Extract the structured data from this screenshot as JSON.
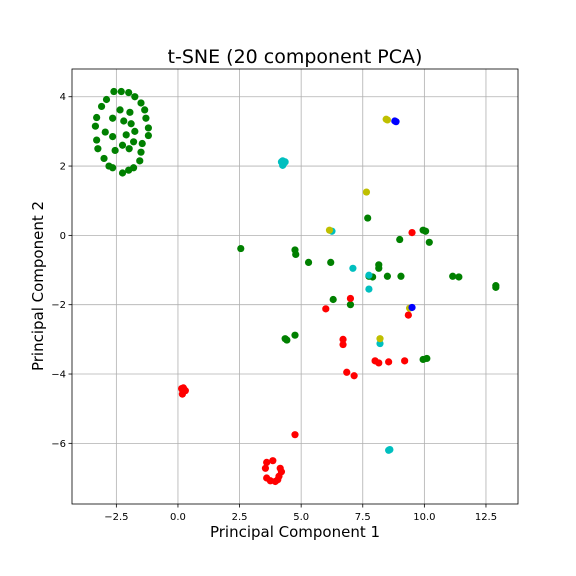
{
  "chart_data": {
    "type": "scatter",
    "title": "t-SNE (20 component PCA)",
    "xlabel": "Principal Component 1",
    "ylabel": "Principal Component 2",
    "xlim": [
      -4.3,
      13.8
    ],
    "ylim": [
      -7.75,
      4.8
    ],
    "xticks": [
      -2.5,
      0.0,
      2.5,
      5.0,
      7.5,
      10.0,
      12.5
    ],
    "xtick_labels": [
      "−2.5",
      "0.0",
      "2.5",
      "5.0",
      "7.5",
      "10.0",
      "12.5"
    ],
    "yticks": [
      -6,
      -4,
      -2,
      0,
      2,
      4
    ],
    "ytick_labels": [
      "−6",
      "−4",
      "−2",
      "0",
      "2",
      "4"
    ],
    "grid": true,
    "series": [
      {
        "color": "#008000",
        "points": [
          [
            -2.6,
            4.15
          ],
          [
            -2.3,
            4.15
          ],
          [
            -2.0,
            4.12
          ],
          [
            -1.75,
            4.0
          ],
          [
            -2.9,
            3.92
          ],
          [
            -1.5,
            3.82
          ],
          [
            -3.1,
            3.72
          ],
          [
            -2.35,
            3.62
          ],
          [
            -1.35,
            3.62
          ],
          [
            -3.3,
            3.4
          ],
          [
            -2.65,
            3.38
          ],
          [
            -1.95,
            3.55
          ],
          [
            -1.3,
            3.38
          ],
          [
            -3.35,
            3.15
          ],
          [
            -2.2,
            3.3
          ],
          [
            -1.9,
            3.22
          ],
          [
            -1.2,
            3.1
          ],
          [
            -2.95,
            2.98
          ],
          [
            -1.75,
            3.0
          ],
          [
            -1.2,
            2.88
          ],
          [
            -3.3,
            2.75
          ],
          [
            -2.65,
            2.85
          ],
          [
            -2.1,
            2.9
          ],
          [
            -1.8,
            2.7
          ],
          [
            -2.25,
            2.6
          ],
          [
            -1.45,
            2.65
          ],
          [
            -3.25,
            2.5
          ],
          [
            -2.55,
            2.45
          ],
          [
            -1.98,
            2.5
          ],
          [
            -1.5,
            2.4
          ],
          [
            -3.0,
            2.22
          ],
          [
            -1.55,
            2.15
          ],
          [
            -2.8,
            2.0
          ],
          [
            -2.65,
            1.95
          ],
          [
            -1.8,
            1.95
          ],
          [
            -2.0,
            1.88
          ],
          [
            -2.25,
            1.8
          ],
          [
            2.55,
            -0.38
          ],
          [
            4.75,
            -0.42
          ],
          [
            4.78,
            -0.55
          ],
          [
            5.3,
            -0.78
          ],
          [
            6.2,
            -0.78
          ],
          [
            7.7,
            0.5
          ],
          [
            8.15,
            -0.85
          ],
          [
            8.15,
            -0.95
          ],
          [
            7.75,
            -1.18
          ],
          [
            7.9,
            -1.2
          ],
          [
            8.5,
            -1.18
          ],
          [
            9.05,
            -1.18
          ],
          [
            9.0,
            -0.12
          ],
          [
            9.95,
            0.15
          ],
          [
            10.05,
            0.12
          ],
          [
            10.2,
            -0.2
          ],
          [
            11.15,
            -1.18
          ],
          [
            11.4,
            -1.2
          ],
          [
            12.9,
            -1.45
          ],
          [
            12.9,
            -1.5
          ],
          [
            6.3,
            -1.85
          ],
          [
            7.0,
            -2.0
          ],
          [
            4.35,
            -2.98
          ],
          [
            4.42,
            -3.02
          ],
          [
            4.75,
            -2.88
          ],
          [
            9.95,
            -3.58
          ],
          [
            10.1,
            -3.55
          ]
        ]
      },
      {
        "color": "#ff0000",
        "points": [
          [
            0.15,
            -4.42
          ],
          [
            0.25,
            -4.45
          ],
          [
            0.2,
            -4.5
          ],
          [
            0.3,
            -4.48
          ],
          [
            0.18,
            -4.58
          ],
          [
            0.22,
            -4.4
          ],
          [
            4.75,
            -5.75
          ],
          [
            3.6,
            -6.55
          ],
          [
            3.85,
            -6.5
          ],
          [
            4.15,
            -6.72
          ],
          [
            3.55,
            -6.72
          ],
          [
            4.2,
            -6.82
          ],
          [
            4.1,
            -6.95
          ],
          [
            3.6,
            -7.0
          ],
          [
            3.75,
            -7.08
          ],
          [
            3.95,
            -7.1
          ],
          [
            4.05,
            -7.05
          ],
          [
            6.0,
            -2.12
          ],
          [
            7.0,
            -1.82
          ],
          [
            6.7,
            -3.0
          ],
          [
            6.7,
            -3.15
          ],
          [
            6.85,
            -3.95
          ],
          [
            7.15,
            -4.05
          ],
          [
            8.0,
            -3.62
          ],
          [
            8.15,
            -3.68
          ],
          [
            8.55,
            -3.65
          ],
          [
            9.2,
            -3.62
          ],
          [
            9.35,
            -2.3
          ],
          [
            9.5,
            0.08
          ]
        ]
      },
      {
        "color": "#00bfbf",
        "points": [
          [
            4.25,
            2.02
          ],
          [
            4.3,
            2.08
          ],
          [
            4.2,
            2.12
          ],
          [
            4.35,
            2.12
          ],
          [
            4.25,
            2.15
          ],
          [
            6.25,
            0.12
          ],
          [
            7.1,
            -0.95
          ],
          [
            7.75,
            -1.15
          ],
          [
            7.75,
            -1.55
          ],
          [
            8.2,
            -3.12
          ],
          [
            8.55,
            -6.2
          ],
          [
            8.6,
            -6.18
          ]
        ]
      },
      {
        "color": "#bfbf00",
        "points": [
          [
            8.45,
            3.35
          ],
          [
            8.5,
            3.33
          ],
          [
            7.65,
            1.25
          ],
          [
            6.15,
            0.15
          ],
          [
            8.2,
            -2.98
          ],
          [
            9.4,
            -2.1
          ]
        ]
      },
      {
        "color": "#0000ff",
        "points": [
          [
            8.8,
            3.3
          ],
          [
            8.85,
            3.28
          ],
          [
            9.5,
            -2.08
          ]
        ]
      }
    ]
  }
}
